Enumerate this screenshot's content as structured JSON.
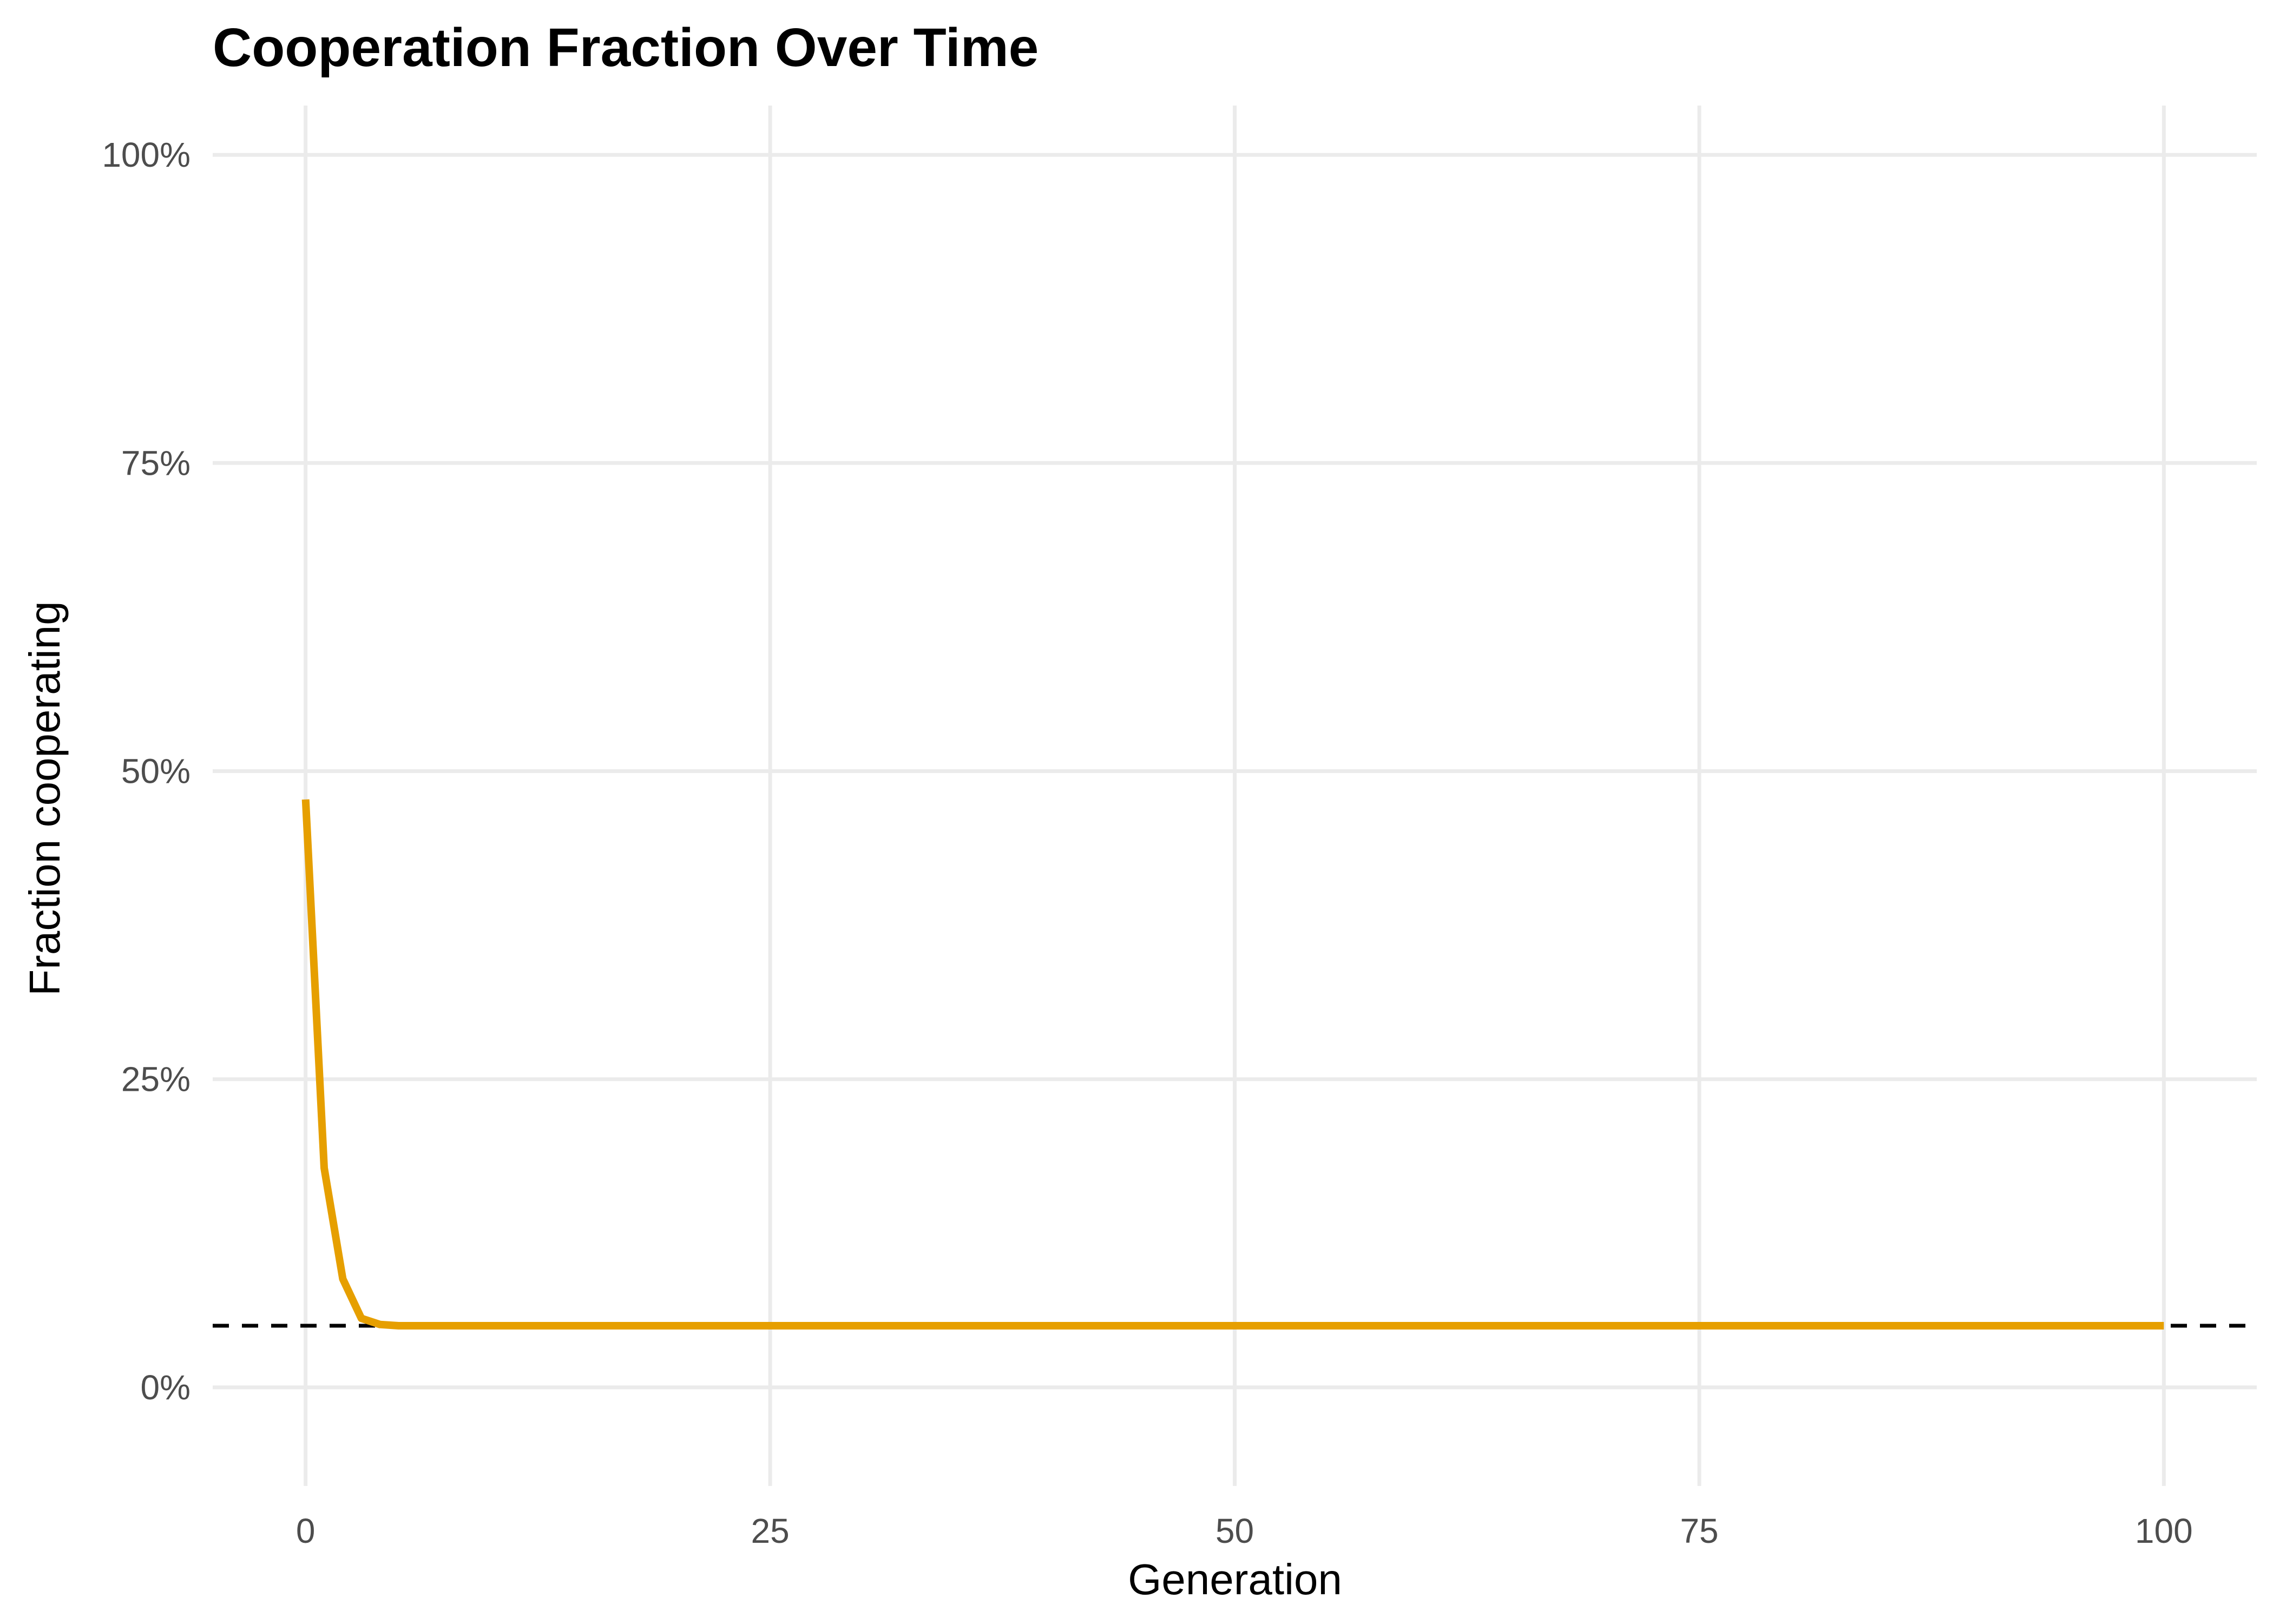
{
  "chart_data": {
    "type": "line",
    "title": "Cooperation Fraction Over Time",
    "xlabel": "Generation",
    "ylabel": "Fraction cooperating",
    "xlim": [
      -5,
      105
    ],
    "ylim": [
      -0.08,
      1.04
    ],
    "x_ticks": [
      0,
      25,
      50,
      75,
      100
    ],
    "y_ticks": [
      0,
      0.25,
      0.5,
      0.75,
      1.0
    ],
    "x_tick_labels": [
      "0",
      "25",
      "50",
      "75",
      "100"
    ],
    "y_tick_labels": [
      "0%",
      "25%",
      "50%",
      "75%",
      "100%"
    ],
    "grid": true,
    "legend": "none",
    "series": [
      {
        "color": "#E69F00",
        "x": [
          0,
          1,
          2,
          3,
          4,
          5,
          6,
          7,
          8,
          9,
          10,
          15,
          20,
          25,
          30,
          35,
          40,
          45,
          50,
          55,
          60,
          65,
          70,
          75,
          80,
          85,
          90,
          95,
          100
        ],
        "y": [
          0.477,
          0.178,
          0.088,
          0.056,
          0.051,
          0.05,
          0.05,
          0.05,
          0.05,
          0.05,
          0.05,
          0.05,
          0.05,
          0.05,
          0.05,
          0.05,
          0.05,
          0.05,
          0.05,
          0.05,
          0.05,
          0.05,
          0.05,
          0.05,
          0.05,
          0.05,
          0.05,
          0.05,
          0.05
        ]
      }
    ],
    "reference_line": {
      "y": 0.05,
      "style": "dashed",
      "color": "#000000"
    }
  }
}
